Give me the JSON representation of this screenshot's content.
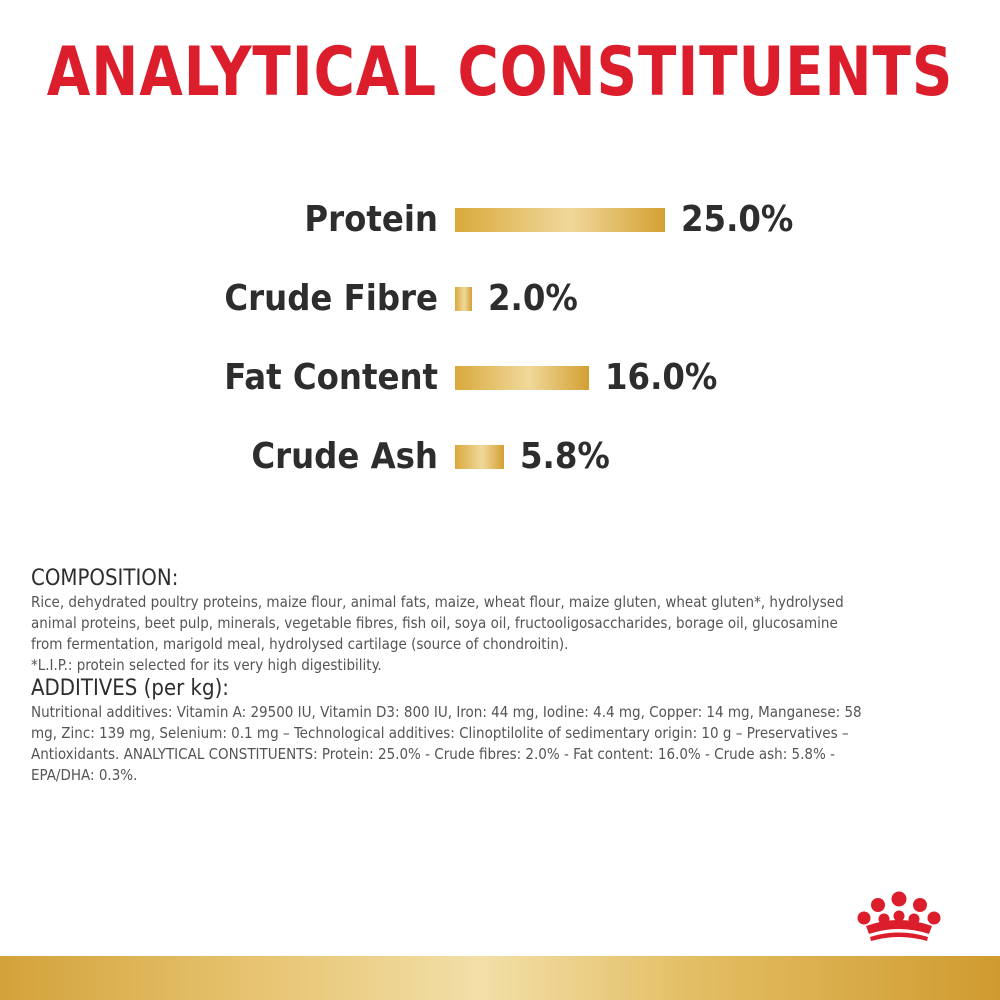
{
  "title": "ANALYTICAL CONSTITUENTS",
  "chart_data": {
    "type": "bar",
    "orientation": "horizontal",
    "title": "ANALYTICAL CONSTITUENTS",
    "categories": [
      "Protein",
      "Crude Fibre",
      "Fat Content",
      "Crude Ash"
    ],
    "values": [
      25.0,
      2.0,
      16.0,
      5.8
    ],
    "value_labels": [
      "25.0%",
      "2.0%",
      "16.0%",
      "5.8%"
    ],
    "unit": "%",
    "xlabel": "",
    "ylabel": "",
    "xlim": [
      0,
      25
    ],
    "grid": false,
    "legend": "none",
    "bar_color": "#e0b55a"
  },
  "composition": {
    "heading": "COMPOSITION:",
    "lines": [
      "Rice, dehydrated poultry proteins, maize flour, animal fats, maize, wheat flour, maize gluten, wheat gluten*, hydrolysed",
      "animal proteins, beet pulp, minerals, vegetable fibres, fish oil, soya oil, fructooligosaccharides, borage oil, glucosamine",
      "from fermentation, marigold meal, hydrolysed cartilage (source of chondroitin).",
      "*L.I.P.: protein selected for its very high digestibility."
    ]
  },
  "additives": {
    "heading": "ADDITIVES (per kg):",
    "lines": [
      "Nutritional additives: Vitamin A: 29500 IU, Vitamin D3: 800 IU, Iron: 44 mg, Iodine: 4.4 mg, Copper: 14 mg, Manganese: 58",
      "mg, Zinc: 139 mg, Selenium: 0.1 mg – Technological additives: Clinoptilolite of sedimentary origin: 10 g – Preservatives –",
      "Antioxidants. ANALYTICAL CONSTITUENTS: Protein: 25.0% - Crude fibres: 2.0% - Fat content: 16.0% - Crude ash: 5.8% -",
      "EPA/DHA: 0.3%."
    ]
  },
  "colors": {
    "brand_red": "#dc1e2c",
    "gold": "#e0b55a",
    "text_dark": "#2d2d2d",
    "text_body": "#555555"
  },
  "logo": {
    "icon": "crown-icon"
  }
}
